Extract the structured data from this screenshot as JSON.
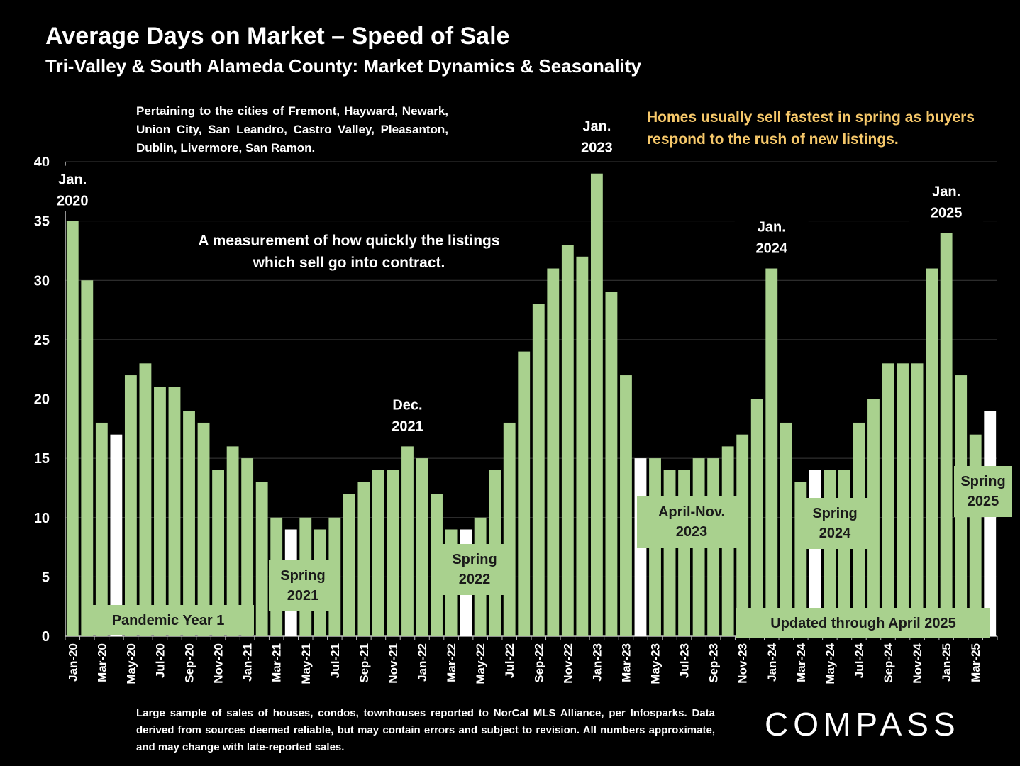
{
  "title": "Average Days on Market – Speed of Sale",
  "subtitle": "Tri-Valley & South Alameda County: Market Dynamics & Seasonality",
  "cities_note": "Pertaining to the cities of Fremont, Hayward, Newark, Union City, San Leandro, Castro Valley, Pleasanton, Dublin, Livermore, San Ramon.",
  "homes_note": "Homes usually sell fastest in spring as buyers respond to the rush of new listings.",
  "footnote": "Large sample of sales of houses, condos, townhouses reported to NorCal MLS Alliance, per Infosparks. Data derived from sources deemed reliable, but may contain errors and subject to revision. All numbers approximate, and may change with late-reported sales.",
  "logo_text": "COMPASS",
  "colors": {
    "bar": "#a9d18e",
    "highlight": "#ffffff",
    "label_box": "#a9d18e",
    "note": "#f6c86a",
    "background": "#000000"
  },
  "chart_data": {
    "type": "bar",
    "ylim": [
      0,
      40
    ],
    "yticks": [
      0,
      5,
      10,
      15,
      20,
      25,
      30,
      35,
      40
    ],
    "grid": true,
    "legend": "none",
    "x_tick_labels": [
      "Jan-20",
      "Mar-20",
      "May-20",
      "Jul-20",
      "Sep-20",
      "Nov-20",
      "Jan-21",
      "Mar-21",
      "May-21",
      "Jul-21",
      "Sep-21",
      "Nov-21",
      "Jan-22",
      "Mar-22",
      "May-22",
      "Jul-22",
      "Sep-22",
      "Nov-22",
      "Jan-23",
      "Mar-23",
      "May-23",
      "Jul-23",
      "Sep-23",
      "Nov-23",
      "Jan-24",
      "Mar-24",
      "May-24",
      "Jul-24",
      "Sep-24",
      "Nov-24",
      "Jan-25",
      "Mar-25"
    ],
    "values": [
      35,
      30,
      18,
      17,
      22,
      23,
      21,
      21,
      19,
      18,
      14,
      16,
      15,
      13,
      10,
      9,
      10,
      9,
      10,
      12,
      13,
      14,
      14,
      16,
      15,
      12,
      9,
      9,
      10,
      14,
      18,
      24,
      28,
      31,
      33,
      32,
      39,
      29,
      22,
      15,
      15,
      14,
      14,
      15,
      15,
      16,
      17,
      20,
      31,
      18,
      13,
      14,
      14,
      14,
      18,
      20,
      23,
      23,
      23,
      31,
      34,
      22,
      17,
      19
    ],
    "highlighted_indices": [
      3,
      15,
      27,
      39,
      51,
      63
    ],
    "annotations": [
      {
        "text": "Jan. 2020",
        "index": 0,
        "value": 35
      },
      {
        "text": "Dec. 2021",
        "index": 23,
        "value": 16
      },
      {
        "text": "Jan. 2023",
        "index": 36,
        "value": 39
      },
      {
        "text": "Jan. 2024",
        "index": 48,
        "value": 31
      },
      {
        "text": "Jan. 2025",
        "index": 60,
        "value": 34
      },
      {
        "text": "A measurement of how quickly the listings which sell go into contract."
      }
    ],
    "period_labels": [
      "Pandemic Year 1",
      "Spring 2021",
      "Spring 2022",
      "April-Nov. 2023",
      "Spring 2024",
      "Spring 2025",
      "Updated through April 2025"
    ]
  }
}
